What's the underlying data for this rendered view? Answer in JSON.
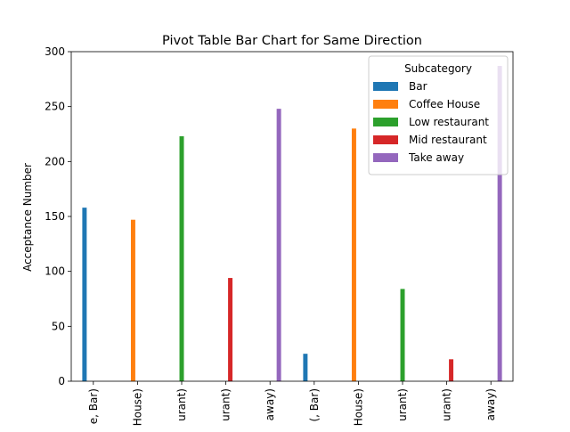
{
  "chart_data": {
    "type": "bar",
    "title": "Pivot Table Bar Chart for Same Direction",
    "ylabel": "Acceptance Number",
    "xlabel": "",
    "ylim": [
      0,
      300
    ],
    "yticks": [
      0,
      50,
      100,
      150,
      200,
      250,
      300
    ],
    "categories": [
      "e, Bar)",
      "House)",
      "urant)",
      "urant)",
      "away)",
      "(, Bar)",
      "House)",
      "urant)",
      "urant)",
      "away)"
    ],
    "legend": {
      "title": "Subcategory",
      "placement": "top-right"
    },
    "series": [
      {
        "name": "Bar",
        "color": "#1f77b4",
        "values": [
          158,
          0,
          0,
          0,
          0,
          25,
          0,
          0,
          0,
          0
        ]
      },
      {
        "name": "Coffee House",
        "color": "#ff7f0e",
        "values": [
          0,
          147,
          0,
          0,
          0,
          0,
          230,
          0,
          0,
          0
        ]
      },
      {
        "name": "Low restaurant",
        "color": "#2ca02c",
        "values": [
          0,
          0,
          223,
          0,
          0,
          0,
          0,
          84,
          0,
          0
        ]
      },
      {
        "name": "Mid restaurant",
        "color": "#d62728",
        "values": [
          0,
          0,
          0,
          94,
          0,
          0,
          0,
          0,
          20,
          0
        ]
      },
      {
        "name": "Take away",
        "color": "#9467bd",
        "values": [
          0,
          0,
          0,
          0,
          248,
          0,
          0,
          0,
          0,
          287
        ]
      }
    ]
  }
}
